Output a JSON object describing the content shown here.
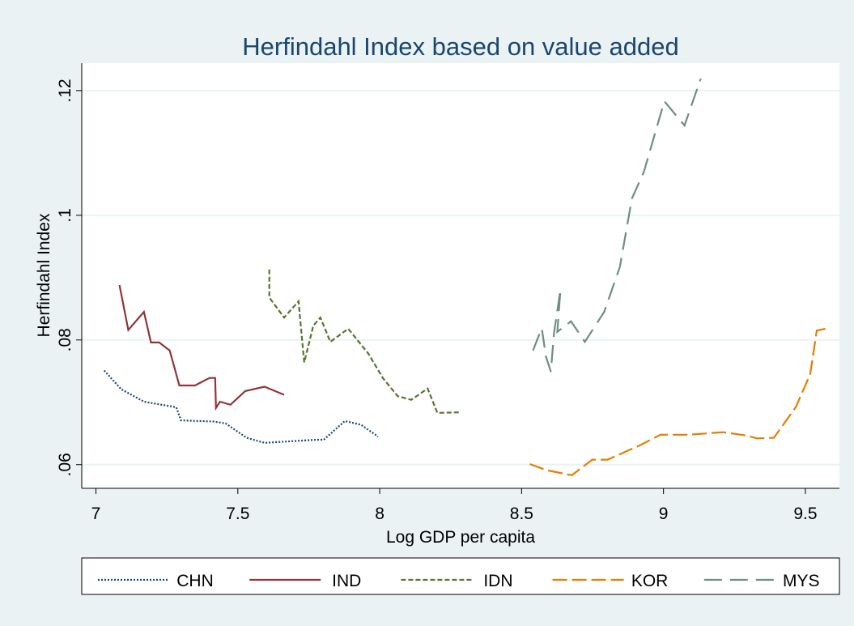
{
  "chart_data": {
    "type": "line",
    "title": "Herfindahl Index based on value added",
    "x_label": "Log GDP per capita",
    "y_label": "Herfindahl Index",
    "xlim": [
      6.95,
      9.62
    ],
    "ylim": [
      0.0562,
      0.1244
    ],
    "xticks": [
      7,
      7.5,
      8,
      8.5,
      9,
      9.5
    ],
    "yticks": [
      {
        "value": 0.06,
        "label": ".06"
      },
      {
        "value": 0.08,
        "label": ".08"
      },
      {
        "value": 0.1,
        "label": ".1"
      },
      {
        "value": 0.12,
        "label": ".12"
      }
    ],
    "grid": true,
    "legend_position": "bottom",
    "series": [
      {
        "name": "CHN",
        "color": "#1a476f",
        "dash": "2,2",
        "x": [
          7.029,
          7.089,
          7.169,
          7.283,
          7.3,
          7.417,
          7.457,
          7.531,
          7.594,
          7.777,
          7.803,
          7.877,
          7.934,
          7.994
        ],
        "values": [
          0.0751,
          0.0721,
          0.0701,
          0.0692,
          0.0671,
          0.0669,
          0.0666,
          0.0643,
          0.0635,
          0.064,
          0.064,
          0.067,
          0.0664,
          0.0645
        ]
      },
      {
        "name": "IND",
        "color": "#90353b",
        "dash": "",
        "x": [
          7.083,
          7.114,
          7.169,
          7.194,
          7.223,
          7.26,
          7.294,
          7.349,
          7.4,
          7.42,
          7.423,
          7.437,
          7.474,
          7.526,
          7.594,
          7.663
        ],
        "values": [
          0.0888,
          0.0816,
          0.0845,
          0.0796,
          0.0796,
          0.0783,
          0.0727,
          0.0727,
          0.0739,
          0.0739,
          0.0691,
          0.0701,
          0.0696,
          0.0718,
          0.0725,
          0.0712
        ]
      },
      {
        "name": "IDN",
        "color": "#55752f",
        "dash": "6,3",
        "x": [
          7.611,
          7.611,
          7.663,
          7.714,
          7.734,
          7.766,
          7.791,
          7.826,
          7.889,
          7.96,
          8.011,
          8.063,
          8.111,
          8.169,
          8.203,
          8.28
        ],
        "values": [
          0.0913,
          0.0868,
          0.0836,
          0.0862,
          0.0764,
          0.0823,
          0.0836,
          0.0797,
          0.0818,
          0.0778,
          0.0739,
          0.071,
          0.0704,
          0.0722,
          0.0683,
          0.0684
        ]
      },
      {
        "name": "KOR",
        "color": "#e37e00",
        "dash": "18,6",
        "x": [
          8.529,
          8.589,
          8.677,
          8.749,
          8.803,
          8.917,
          8.989,
          9.089,
          9.209,
          9.289,
          9.331,
          9.389,
          9.466,
          9.517,
          9.54,
          9.58
        ],
        "values": [
          0.0601,
          0.0591,
          0.0583,
          0.0608,
          0.0608,
          0.0631,
          0.0648,
          0.0648,
          0.0652,
          0.0647,
          0.0642,
          0.0643,
          0.0692,
          0.0745,
          0.0815,
          0.0819
        ]
      },
      {
        "name": "MYS",
        "color": "#6e8e84",
        "dash": "22,10",
        "x": [
          8.54,
          8.571,
          8.586,
          8.603,
          8.614,
          8.637,
          8.626,
          8.674,
          8.723,
          8.791,
          8.846,
          8.889,
          8.931,
          9.003,
          9.074,
          9.131
        ],
        "values": [
          0.0783,
          0.0819,
          0.0773,
          0.0749,
          0.081,
          0.0881,
          0.0813,
          0.083,
          0.0797,
          0.0845,
          0.0917,
          0.1027,
          0.107,
          0.1183,
          0.1144,
          0.1219
        ]
      }
    ]
  }
}
